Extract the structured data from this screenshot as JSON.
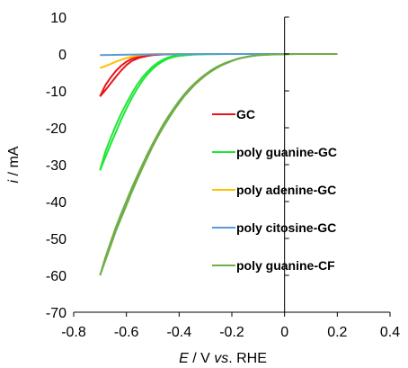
{
  "chart_data": {
    "type": "line",
    "xlabel": {
      "var": "E",
      "unit": " / V ",
      "vs": "vs",
      "ref": ". RHE"
    },
    "ylabel": {
      "var": "i",
      "unit": " / mA"
    },
    "xlim": [
      -0.8,
      0.4
    ],
    "ylim": [
      -70,
      10
    ],
    "x_ticks": [
      -0.8,
      -0.6,
      -0.4,
      -0.2,
      0,
      0.2,
      0.4
    ],
    "x_tick_labels": [
      "-0.8",
      "-0.6",
      "-0.4",
      "-0.2",
      "0",
      "0.2",
      "0.4"
    ],
    "y_ticks": [
      10,
      0,
      -10,
      -20,
      -30,
      -40,
      -50,
      -60,
      -70
    ],
    "y_tick_labels": [
      "10",
      "0",
      "-10",
      "-20",
      "-30",
      "-40",
      "-50",
      "-60",
      "-70"
    ],
    "grid": false,
    "legend_position": "right-center",
    "series": [
      {
        "name": "GC",
        "color": "#e8141c",
        "sweeps": [
          {
            "x": [
              -0.7,
              -0.68,
              -0.66,
              -0.64,
              -0.62,
              -0.6,
              -0.58,
              -0.55,
              -0.52,
              -0.5,
              -0.45,
              -0.4,
              -0.3,
              -0.2,
              0.0,
              0.2
            ],
            "y": [
              -11.5,
              -9.8,
              -8.0,
              -6.2,
              -4.5,
              -3.0,
              -1.9,
              -1.0,
              -0.5,
              -0.3,
              -0.1,
              -0.05,
              0,
              0,
              0,
              0
            ]
          },
          {
            "x": [
              -0.7,
              -0.68,
              -0.66,
              -0.64,
              -0.62,
              -0.6,
              -0.58,
              -0.55,
              -0.52,
              -0.5,
              -0.45,
              -0.4,
              -0.3,
              -0.2,
              0.0,
              0.2
            ],
            "y": [
              -11.5,
              -8.5,
              -6.4,
              -4.6,
              -3.2,
              -2.1,
              -1.3,
              -0.7,
              -0.35,
              -0.2,
              -0.08,
              -0.03,
              0,
              0,
              0,
              0
            ]
          }
        ]
      },
      {
        "name": "poly guanine-GC",
        "color": "#1ee636",
        "sweeps": [
          {
            "x": [
              -0.7,
              -0.68,
              -0.66,
              -0.64,
              -0.62,
              -0.6,
              -0.58,
              -0.56,
              -0.54,
              -0.52,
              -0.5,
              -0.48,
              -0.46,
              -0.44,
              -0.42,
              -0.4,
              -0.35,
              -0.3,
              -0.2,
              0.0,
              0.2
            ],
            "y": [
              -31.5,
              -28.0,
              -24.5,
              -21.2,
              -17.8,
              -14.8,
              -12.0,
              -9.5,
              -7.3,
              -5.5,
              -4.0,
              -2.8,
              -1.9,
              -1.2,
              -0.8,
              -0.5,
              -0.2,
              -0.05,
              0,
              0,
              0
            ]
          },
          {
            "x": [
              -0.7,
              -0.68,
              -0.66,
              -0.64,
              -0.62,
              -0.6,
              -0.58,
              -0.56,
              -0.54,
              -0.52,
              -0.5,
              -0.48,
              -0.46,
              -0.44,
              -0.42,
              -0.4,
              -0.35,
              -0.3,
              -0.2,
              0.0,
              0.2
            ],
            "y": [
              -31.5,
              -26.5,
              -22.8,
              -19.4,
              -16.2,
              -13.4,
              -10.8,
              -8.4,
              -6.4,
              -4.8,
              -3.4,
              -2.3,
              -1.5,
              -0.9,
              -0.55,
              -0.35,
              -0.12,
              -0.03,
              0,
              0,
              0
            ]
          }
        ]
      },
      {
        "name": "poly adenine-GC",
        "color": "#ffc000",
        "sweeps": [
          {
            "x": [
              -0.7,
              -0.68,
              -0.66,
              -0.64,
              -0.62,
              -0.6,
              -0.58,
              -0.56,
              -0.54,
              -0.52,
              -0.5,
              -0.45,
              -0.4,
              -0.3,
              0.0,
              0.2
            ],
            "y": [
              -3.8,
              -3.3,
              -2.7,
              -2.1,
              -1.6,
              -1.1,
              -0.75,
              -0.45,
              -0.25,
              -0.12,
              -0.05,
              0,
              0,
              0,
              0,
              0
            ]
          }
        ]
      },
      {
        "name": "poly citosine-GC",
        "color": "#5b9bd5",
        "sweeps": [
          {
            "x": [
              -0.7,
              -0.6,
              -0.5,
              -0.4,
              -0.3,
              -0.2,
              -0.1,
              0.0,
              0.1,
              0.2
            ],
            "y": [
              -0.3,
              -0.2,
              -0.1,
              -0.05,
              0,
              0,
              0,
              0,
              0,
              0
            ]
          }
        ]
      },
      {
        "name": "poly guanine-CF",
        "color": "#70ad47",
        "sweeps": [
          {
            "x": [
              -0.7,
              -0.68,
              -0.66,
              -0.64,
              -0.62,
              -0.6,
              -0.58,
              -0.56,
              -0.54,
              -0.52,
              -0.5,
              -0.48,
              -0.46,
              -0.44,
              -0.42,
              -0.4,
              -0.38,
              -0.36,
              -0.34,
              -0.32,
              -0.3,
              -0.28,
              -0.26,
              -0.24,
              -0.22,
              -0.2,
              -0.18,
              -0.16,
              -0.14,
              -0.12,
              -0.1,
              -0.05,
              0.0,
              0.05,
              0.1,
              0.15,
              0.2
            ],
            "y": [
              -60.0,
              -56.0,
              -52.0,
              -48.0,
              -44.5,
              -41.0,
              -37.5,
              -34.2,
              -31.0,
              -28.0,
              -25.0,
              -22.3,
              -19.8,
              -17.5,
              -15.3,
              -13.3,
              -11.4,
              -9.8,
              -8.3,
              -7.0,
              -5.8,
              -4.8,
              -3.9,
              -3.1,
              -2.5,
              -1.9,
              -1.4,
              -1.05,
              -0.75,
              -0.5,
              -0.35,
              -0.15,
              -0.05,
              0,
              0,
              0,
              0
            ]
          },
          {
            "x": [
              -0.7,
              -0.68,
              -0.66,
              -0.64,
              -0.62,
              -0.6,
              -0.58,
              -0.56,
              -0.54,
              -0.52,
              -0.5,
              -0.48,
              -0.46,
              -0.44,
              -0.42,
              -0.4,
              -0.38,
              -0.36,
              -0.34,
              -0.32,
              -0.3,
              -0.28,
              -0.26,
              -0.24,
              -0.22,
              -0.2,
              -0.18,
              -0.16,
              -0.14,
              -0.12,
              -0.1,
              -0.05,
              0.0,
              0.05,
              0.1,
              0.15,
              0.2
            ],
            "y": [
              -60.0,
              -55.2,
              -51.0,
              -47.0,
              -43.3,
              -39.8,
              -36.4,
              -33.2,
              -30.1,
              -27.1,
              -24.3,
              -21.6,
              -19.1,
              -16.8,
              -14.7,
              -12.7,
              -10.9,
              -9.3,
              -7.9,
              -6.6,
              -5.5,
              -4.5,
              -3.6,
              -2.9,
              -2.3,
              -1.8,
              -1.35,
              -1.0,
              -0.7,
              -0.48,
              -0.32,
              -0.13,
              -0.04,
              0,
              0,
              0,
              0
            ]
          }
        ]
      }
    ]
  }
}
